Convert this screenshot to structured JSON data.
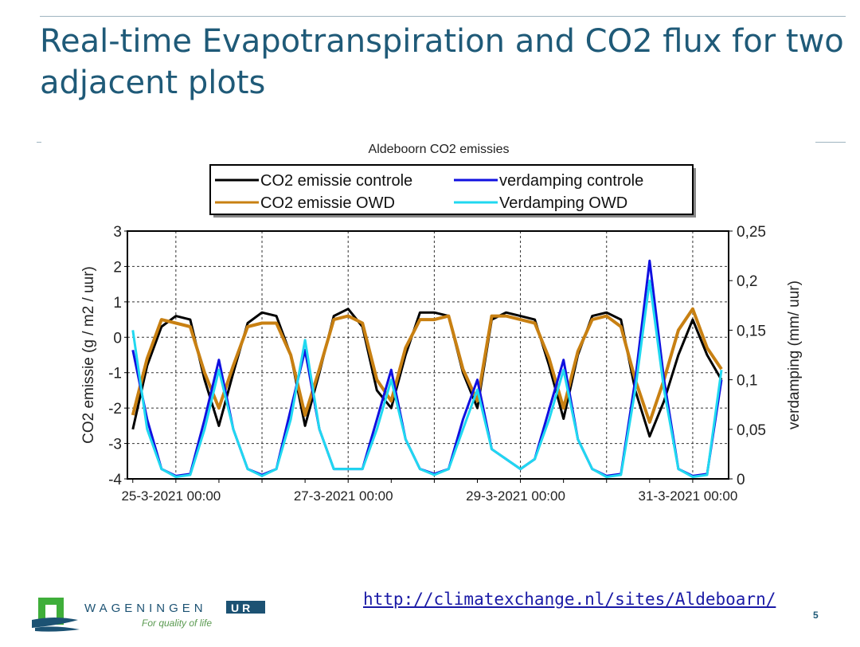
{
  "slide": {
    "title": "Real-time Evapotranspiration and CO2 flux for two adjacent plots",
    "link": "http://climatexchange.nl/sites/Aldeboarn/",
    "page_number": "5",
    "logo": {
      "name": "WAGENINGEN",
      "badge": "UR",
      "tagline": "For quality of life"
    }
  },
  "chart_data": {
    "type": "line",
    "title": "Aldeboorn CO2 emissies",
    "ylabel": "CO2 emissie (g / m2 / uur)",
    "y2label": "verdamping (mm/ uur)",
    "ylim": [
      -4,
      3
    ],
    "y2lim": [
      0,
      0.25
    ],
    "yticks": [
      "3",
      "2",
      "1",
      "0",
      "-1",
      "-2",
      "-3",
      "-4"
    ],
    "y2ticks": [
      "0,25",
      "0,2",
      "0,15",
      "0,1",
      "0,05",
      "0"
    ],
    "xlim": [
      "2021-03-24T10:30",
      "2021-03-31T10:00"
    ],
    "xticks": [
      "25-3-2021 00:00",
      "27-3-2021 00:00",
      "29-3-2021 00:00",
      "31-3-2021 00:00"
    ],
    "grid": true,
    "legend_placement": "top",
    "x": [
      "2021-03-24T12:00",
      "2021-03-24T16:00",
      "2021-03-24T20:00",
      "2021-03-25T00:00",
      "2021-03-25T04:00",
      "2021-03-25T08:00",
      "2021-03-25T12:00",
      "2021-03-25T16:00",
      "2021-03-25T20:00",
      "2021-03-26T00:00",
      "2021-03-26T04:00",
      "2021-03-26T08:00",
      "2021-03-26T12:00",
      "2021-03-26T16:00",
      "2021-03-26T20:00",
      "2021-03-27T00:00",
      "2021-03-27T04:00",
      "2021-03-27T08:00",
      "2021-03-27T12:00",
      "2021-03-27T16:00",
      "2021-03-27T20:00",
      "2021-03-28T00:00",
      "2021-03-28T04:00",
      "2021-03-28T08:00",
      "2021-03-28T12:00",
      "2021-03-28T16:00",
      "2021-03-28T20:00",
      "2021-03-29T00:00",
      "2021-03-29T04:00",
      "2021-03-29T08:00",
      "2021-03-29T12:00",
      "2021-03-29T16:00",
      "2021-03-29T20:00",
      "2021-03-30T00:00",
      "2021-03-30T04:00",
      "2021-03-30T08:00",
      "2021-03-30T12:00",
      "2021-03-30T16:00",
      "2021-03-30T20:00",
      "2021-03-31T00:00",
      "2021-03-31T04:00",
      "2021-03-31T08:00"
    ],
    "series": [
      {
        "name": "CO2 emissie controle",
        "axis": "left",
        "color": "#000000",
        "values": [
          -2.6,
          -0.8,
          0.3,
          0.6,
          0.5,
          -1.2,
          -2.5,
          -1.0,
          0.4,
          0.7,
          0.6,
          -0.5,
          -2.5,
          -1.0,
          0.6,
          0.8,
          0.3,
          -1.5,
          -2.0,
          -0.5,
          0.7,
          0.7,
          0.6,
          -1.0,
          -2.0,
          0.5,
          0.7,
          0.6,
          0.5,
          -0.8,
          -2.3,
          -0.5,
          0.6,
          0.7,
          0.5,
          -1.5,
          -2.8,
          -1.8,
          -0.5,
          0.5,
          -0.5,
          -1.2
        ]
      },
      {
        "name": "CO2 emissie OWD",
        "axis": "left",
        "color": "#c88012",
        "values": [
          -2.2,
          -0.6,
          0.5,
          0.4,
          0.3,
          -1.0,
          -2.0,
          -0.8,
          0.3,
          0.4,
          0.4,
          -0.5,
          -2.2,
          -0.9,
          0.5,
          0.6,
          0.4,
          -1.2,
          -1.8,
          -0.3,
          0.5,
          0.5,
          0.6,
          -0.9,
          -1.8,
          0.6,
          0.6,
          0.5,
          0.4,
          -0.6,
          -2.0,
          -0.4,
          0.5,
          0.6,
          0.3,
          -1.2,
          -2.4,
          -1.2,
          0.2,
          0.8,
          -0.3,
          -0.9
        ]
      },
      {
        "name": "verdamping controle",
        "axis": "right",
        "color": "#1010e0",
        "values": [
          0.13,
          0.06,
          0.01,
          0.003,
          0.005,
          0.06,
          0.12,
          0.05,
          0.01,
          0.004,
          0.01,
          0.07,
          0.13,
          0.05,
          0.01,
          0.01,
          0.01,
          0.06,
          0.11,
          0.04,
          0.01,
          0.005,
          0.01,
          0.06,
          0.1,
          0.03,
          0.02,
          0.01,
          0.02,
          0.07,
          0.12,
          0.04,
          0.01,
          0.003,
          0.005,
          0.1,
          0.22,
          0.1,
          0.01,
          0.003,
          0.005,
          0.1
        ]
      },
      {
        "name": "Verdamping OWD",
        "axis": "right",
        "color": "#20d8f0",
        "values": [
          0.15,
          0.05,
          0.01,
          0.002,
          0.004,
          0.05,
          0.11,
          0.05,
          0.01,
          0.003,
          0.01,
          0.06,
          0.14,
          0.05,
          0.01,
          0.01,
          0.01,
          0.05,
          0.1,
          0.04,
          0.01,
          0.004,
          0.01,
          0.05,
          0.09,
          0.03,
          0.02,
          0.01,
          0.02,
          0.06,
          0.11,
          0.04,
          0.01,
          0.002,
          0.004,
          0.09,
          0.2,
          0.09,
          0.01,
          0.002,
          0.004,
          0.11
        ]
      }
    ]
  }
}
